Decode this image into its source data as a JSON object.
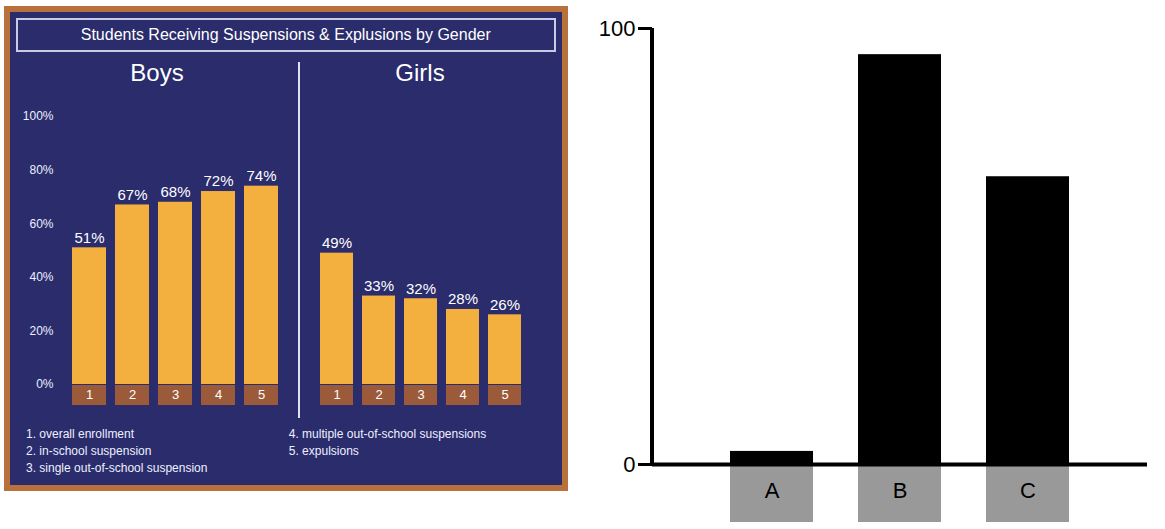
{
  "chart_data": [
    {
      "type": "bar",
      "title": "Students Receiving Suspensions & Explusions by Gender",
      "categories": [
        "1",
        "2",
        "3",
        "4",
        "5"
      ],
      "series": [
        {
          "name": "Boys",
          "color": "#f4b03e",
          "values": [
            51,
            67,
            68,
            72,
            74
          ],
          "value_labels": [
            "51%",
            "67%",
            "68%",
            "72%",
            "74%"
          ]
        },
        {
          "name": "Girls",
          "color": "#f4b03e",
          "values": [
            49,
            33,
            32,
            28,
            26
          ],
          "value_labels": [
            "49%",
            "33%",
            "32%",
            "28%",
            "26%"
          ]
        }
      ],
      "ylim": [
        0,
        100
      ],
      "yticks": [
        {
          "value": 0,
          "label": "0%"
        },
        {
          "value": 20,
          "label": "20%"
        },
        {
          "value": 40,
          "label": "40%"
        },
        {
          "value": 60,
          "label": "60%"
        },
        {
          "value": 80,
          "label": "80%"
        },
        {
          "value": 100,
          "label": "100%"
        }
      ],
      "data_labels": true,
      "grid": false,
      "annotations": [
        "1. overall enrollment",
        "2. in-school suspension",
        "3. single out-of-school suspension",
        "4. multiple out-of-school suspensions",
        "5. expulsions"
      ]
    },
    {
      "type": "bar",
      "categories": [
        "A",
        "B",
        "C"
      ],
      "values": [
        3,
        94,
        66
      ],
      "color": "#000000",
      "ylim": [
        0,
        100
      ],
      "yticks": [
        0,
        100
      ]
    }
  ]
}
